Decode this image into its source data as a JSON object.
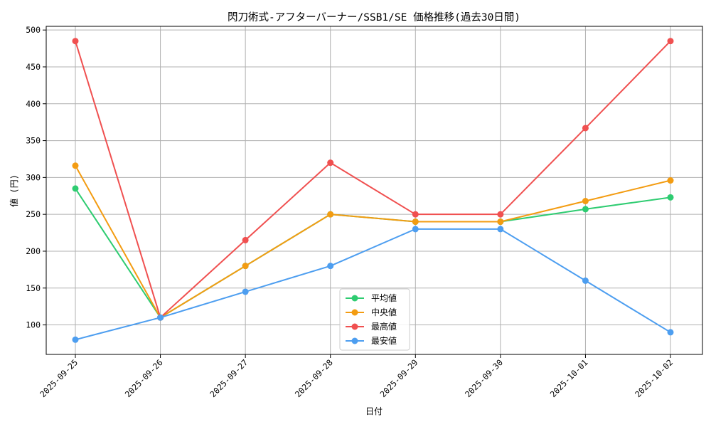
{
  "chart_data": {
    "type": "line",
    "title": "閃刀術式-アフターバーナー/SSB1/SE 価格推移(過去30日間)",
    "xlabel": "日付",
    "ylabel": "値 (円)",
    "categories": [
      "2025-09-25",
      "2025-09-26",
      "2025-09-27",
      "2025-09-28",
      "2025-09-29",
      "2025-09-30",
      "2025-10-01",
      "2025-10-02"
    ],
    "ylim": [
      60,
      505
    ],
    "yticks": [
      100,
      150,
      200,
      250,
      300,
      350,
      400,
      450,
      500
    ],
    "grid": true,
    "legend_position": "lower-center",
    "series": [
      {
        "name": "平均値",
        "color": "#2ecc71",
        "values": [
          285,
          110,
          180,
          250,
          240,
          240,
          257,
          273
        ]
      },
      {
        "name": "中央値",
        "color": "#f39c12",
        "values": [
          316,
          110,
          180,
          250,
          240,
          240,
          268,
          296
        ]
      },
      {
        "name": "最高値",
        "color": "#f05050",
        "values": [
          485,
          110,
          215,
          320,
          250,
          250,
          367,
          485
        ]
      },
      {
        "name": "最安値",
        "color": "#4d9ef0",
        "values": [
          80,
          110,
          145,
          180,
          230,
          230,
          160,
          90
        ]
      }
    ]
  }
}
